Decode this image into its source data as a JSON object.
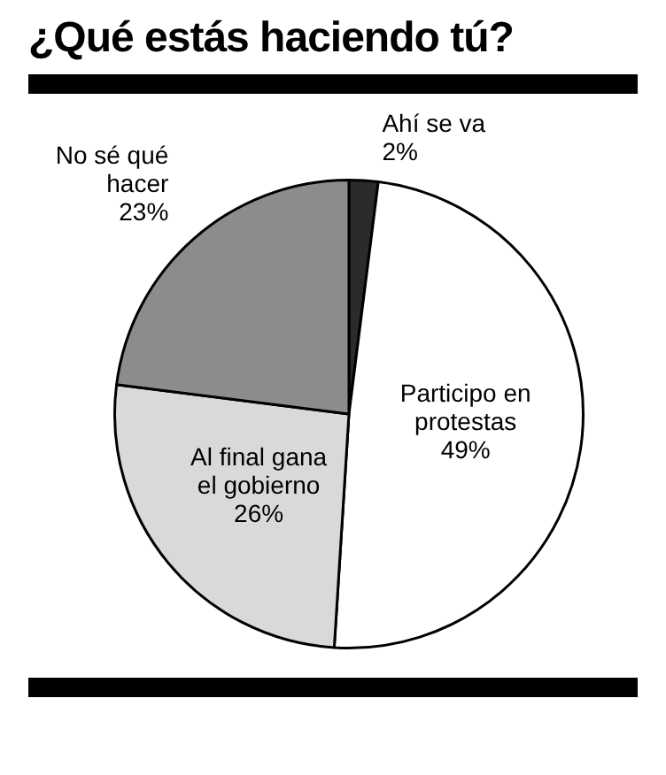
{
  "chart_data": {
    "type": "pie",
    "title": "¿Qué estás haciendo tú?",
    "categories": [
      "Ahí se va",
      "Participo en protestas",
      "Al final gana el gobierno",
      "No sé qué hacer"
    ],
    "values": [
      2,
      49,
      26,
      23
    ],
    "colors": [
      "#2b2b2b",
      "#ffffff",
      "#d9d9d9",
      "#8c8c8c"
    ],
    "value_labels": [
      "2%",
      "49%",
      "26%",
      "23%"
    ],
    "legend": false
  }
}
